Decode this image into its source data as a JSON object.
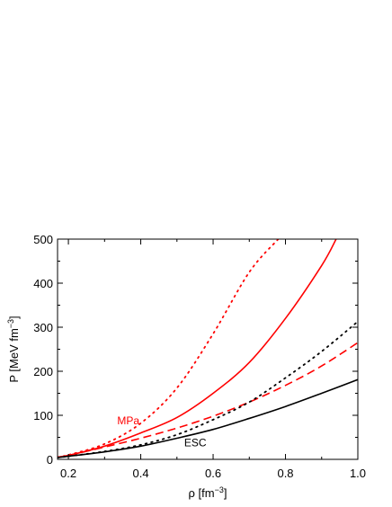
{
  "chart_data": {
    "type": "line",
    "xlabel": "ρ [fm",
    "xlabel_exp": "−3",
    "xlabel_tail": "]",
    "ylabel": "P [MeV fm",
    "ylabel_exp": "−3",
    "ylabel_tail": "]",
    "xlim": [
      0.17,
      1.0
    ],
    "ylim": [
      0,
      500
    ],
    "xticks": [
      0.2,
      0.4,
      0.6,
      0.8,
      1.0
    ],
    "xtick_labels": [
      "0.2",
      "0.4",
      "0.6",
      "0.8",
      "1.0"
    ],
    "yticks": [
      0,
      100,
      200,
      300,
      400,
      500
    ],
    "ytick_labels": [
      "0",
      "100",
      "200",
      "300",
      "400",
      "500"
    ],
    "grid": false,
    "annotations": [
      {
        "text": "MPa",
        "x": 0.335,
        "y": 80,
        "color": "#ff0000"
      },
      {
        "text": "ESC",
        "x": 0.52,
        "y": 30,
        "color": "#000000"
      }
    ],
    "series": [
      {
        "color": "#ff0000",
        "style": "dotted",
        "x": [
          0.17,
          0.2,
          0.3,
          0.4,
          0.5,
          0.6,
          0.7,
          0.78
        ],
        "y": [
          5,
          10,
          35,
          82,
          162,
          285,
          425,
          500
        ]
      },
      {
        "color": "#ff0000",
        "style": "solid",
        "x": [
          0.17,
          0.2,
          0.3,
          0.4,
          0.5,
          0.6,
          0.7,
          0.8,
          0.9,
          0.94
        ],
        "y": [
          5,
          9,
          30,
          60,
          95,
          150,
          220,
          320,
          440,
          500
        ]
      },
      {
        "color": "#ff0000",
        "style": "dashed",
        "x": [
          0.17,
          0.2,
          0.3,
          0.4,
          0.5,
          0.6,
          0.7,
          0.8,
          0.9,
          1.0
        ],
        "y": [
          5,
          9,
          28,
          48,
          71,
          98,
          130,
          168,
          212,
          265
        ]
      },
      {
        "color": "#000000",
        "style": "dotted",
        "x": [
          0.17,
          0.2,
          0.3,
          0.4,
          0.5,
          0.6,
          0.7,
          0.8,
          0.9,
          1.0
        ],
        "y": [
          4,
          7,
          18,
          33,
          56,
          90,
          130,
          185,
          245,
          313
        ]
      },
      {
        "color": "#000000",
        "style": "solid",
        "x": [
          0.17,
          0.2,
          0.3,
          0.4,
          0.5,
          0.6,
          0.7,
          0.8,
          0.9,
          1.0
        ],
        "y": [
          4,
          7,
          17,
          30,
          48,
          68,
          93,
          120,
          150,
          181
        ]
      }
    ]
  }
}
